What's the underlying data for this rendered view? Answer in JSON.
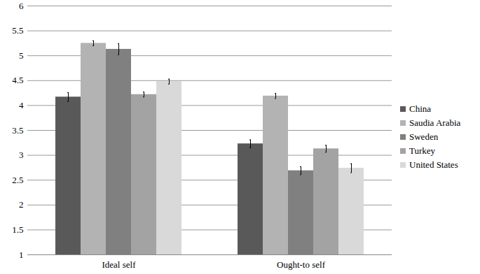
{
  "chart_data": {
    "type": "bar",
    "categories": [
      "Ideal self",
      "Ought-to self"
    ],
    "series": [
      {
        "name": "China",
        "color": "#595959",
        "values": [
          4.17,
          3.23
        ],
        "errors": [
          0.09,
          0.08
        ]
      },
      {
        "name": "Saudia Arabia",
        "color": "#b3b3b3",
        "values": [
          5.25,
          4.19
        ],
        "errors": [
          0.05,
          0.05
        ]
      },
      {
        "name": "Sweden",
        "color": "#808080",
        "values": [
          5.13,
          2.69
        ],
        "errors": [
          0.11,
          0.08
        ]
      },
      {
        "name": "Turkey",
        "color": "#a3a3a3",
        "values": [
          4.22,
          3.13
        ],
        "errors": [
          0.05,
          0.07
        ]
      },
      {
        "name": "United States",
        "color": "#d9d9d9",
        "values": [
          4.48,
          2.74
        ],
        "errors": [
          0.05,
          0.09
        ]
      }
    ],
    "ylim": [
      1,
      6
    ],
    "yticks": [
      1,
      1.5,
      2,
      2.5,
      3,
      3.5,
      4,
      4.5,
      5,
      5.5,
      6
    ],
    "grid": true,
    "legend": "right"
  }
}
